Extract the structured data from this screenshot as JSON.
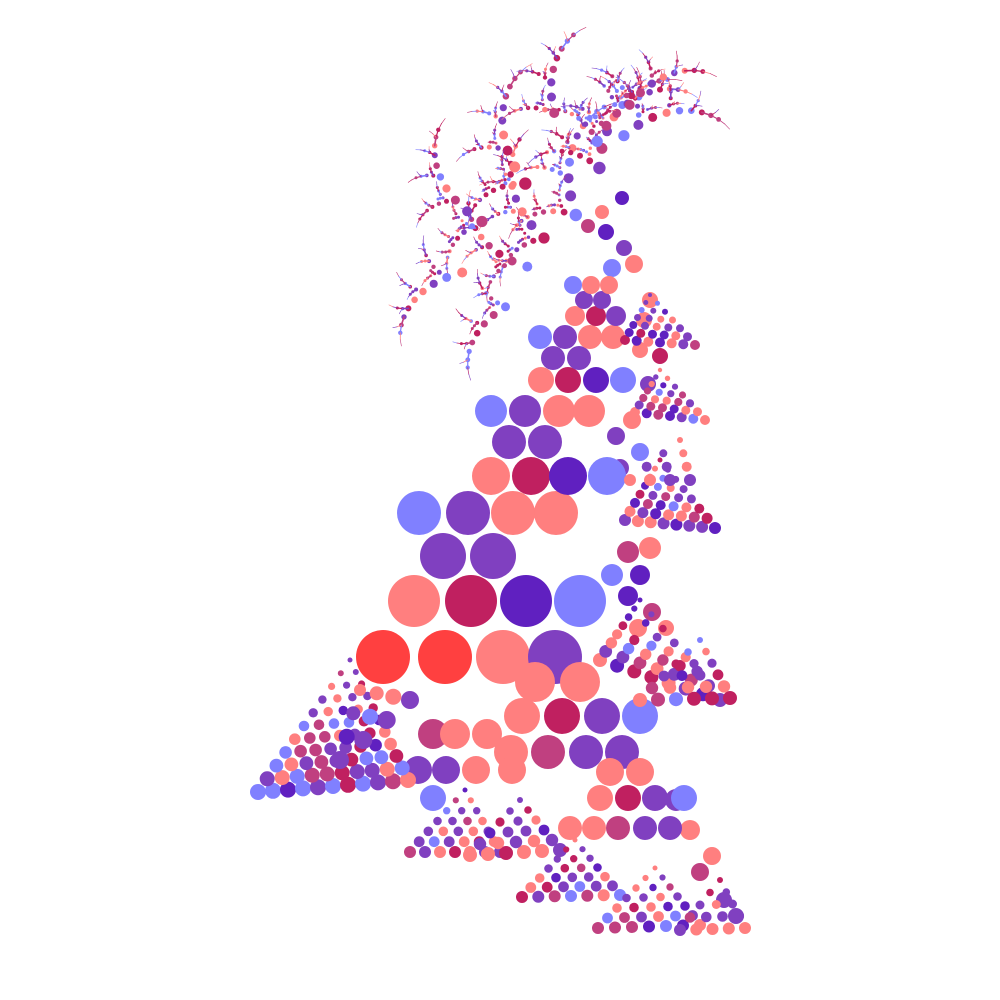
{
  "palette": {
    "coral": "#FF7F7F",
    "red": "#FF4040",
    "crimson": "#C02060",
    "rose": "#C04080",
    "purple": "#8040C0",
    "violet": "#6020C0",
    "periwinkle": "#8080FF"
  },
  "background": "#FFFFFF"
}
